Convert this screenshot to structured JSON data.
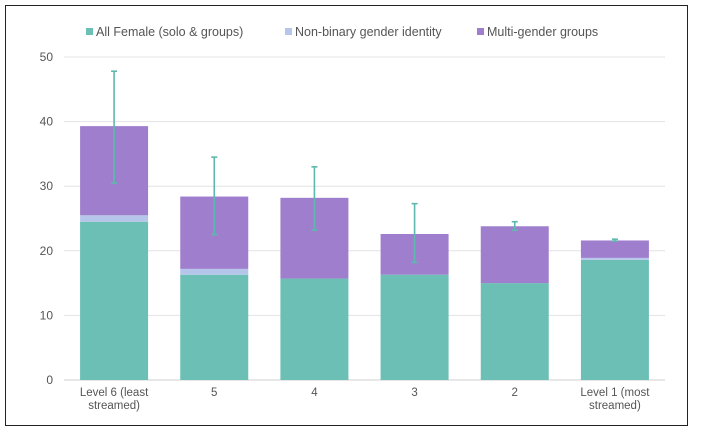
{
  "chart_data": {
    "type": "bar",
    "stacked": true,
    "categories": [
      "Level 6 (least streamed)",
      "5",
      "4",
      "3",
      "2",
      "Level 1 (most streamed)"
    ],
    "category_lines": [
      [
        "Level 6 (least",
        "streamed)"
      ],
      [
        "5"
      ],
      [
        "4"
      ],
      [
        "3"
      ],
      [
        "2"
      ],
      [
        "Level 1 (most",
        "streamed)"
      ]
    ],
    "series": [
      {
        "name": "All Female (solo & groups)",
        "color": "#6bbfb4",
        "values": [
          24.5,
          16.3,
          15.7,
          16.3,
          15.0,
          18.6
        ]
      },
      {
        "name": "Non-binary gender identity",
        "color": "#b6c6ea",
        "values": [
          1.0,
          0.9,
          0.0,
          0.0,
          0.0,
          0.3
        ]
      },
      {
        "name": "Multi-gender groups",
        "color": "#9f7fcd",
        "values": [
          13.8,
          11.2,
          12.5,
          6.3,
          8.8,
          2.7
        ]
      }
    ],
    "error_bars": {
      "color": "#5fb8ae",
      "center": [
        39.3,
        28.4,
        28.2,
        22.6,
        23.8,
        21.6
      ],
      "low": [
        30.5,
        22.5,
        23.2,
        18.2,
        23.2,
        21.5
      ],
      "high": [
        47.8,
        34.5,
        33.0,
        27.3,
        24.5,
        21.8
      ]
    },
    "ylim": [
      0,
      50
    ],
    "yticks": [
      0,
      10,
      20,
      30,
      40,
      50
    ],
    "grid": true,
    "legend": "top",
    "title": "",
    "xlabel": "",
    "ylabel": ""
  }
}
